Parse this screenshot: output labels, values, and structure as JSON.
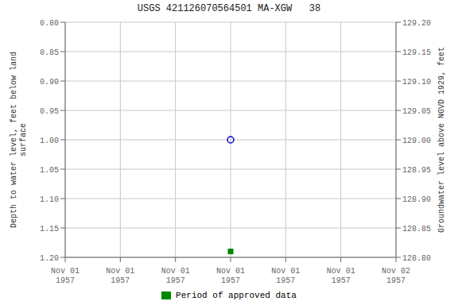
{
  "chart_data": {
    "type": "scatter",
    "title": "USGS 421126070564501 MA-XGW   38",
    "x_label": null,
    "y_label": "Depth to water level, feet below land\nsurface",
    "y2_label": "Groundwater level above NGVD 1929, feet",
    "categories": [
      "Nov 01\n1957",
      "Nov 01\n1957",
      "Nov 01\n1957",
      "Nov 01\n1957",
      "Nov 01\n1957",
      "Nov 01\n1957",
      "Nov 02\n1957"
    ],
    "series": [
      {
        "color": "#0000cc",
        "marker": "open_circle",
        "values": [
          null,
          null,
          null,
          1.0,
          null,
          null,
          null
        ]
      },
      {
        "name": "Period of approved data",
        "color": "#008800",
        "marker": "square",
        "values": [
          null,
          null,
          null,
          1.19,
          null,
          null,
          null
        ]
      }
    ],
    "ylim": [
      1.2,
      0.8
    ],
    "yticks": [
      {
        "value": 0.8,
        "label": "0.80"
      },
      {
        "value": 0.85,
        "label": "0.85"
      },
      {
        "value": 0.9,
        "label": "0.90"
      },
      {
        "value": 0.95,
        "label": "0.95"
      },
      {
        "value": 1.0,
        "label": "1.00"
      },
      {
        "value": 1.05,
        "label": "1.05"
      },
      {
        "value": 1.1,
        "label": "1.10"
      },
      {
        "value": 1.15,
        "label": "1.15"
      },
      {
        "value": 1.2,
        "label": "1.20"
      }
    ],
    "y2lim": [
      128.8,
      129.2
    ],
    "y2ticks": [
      {
        "value": 129.2,
        "label": "129.20"
      },
      {
        "value": 129.15,
        "label": "129.15"
      },
      {
        "value": 129.1,
        "label": "129.10"
      },
      {
        "value": 129.05,
        "label": "129.05"
      },
      {
        "value": 129.0,
        "label": "129.00"
      },
      {
        "value": 128.95,
        "label": "128.95"
      },
      {
        "value": 128.9,
        "label": "128.90"
      },
      {
        "value": 128.85,
        "label": "128.85"
      },
      {
        "value": 128.8,
        "label": "128.80"
      }
    ],
    "grid": true,
    "grid_color": "#c8c8c8",
    "legend": "bottom"
  }
}
